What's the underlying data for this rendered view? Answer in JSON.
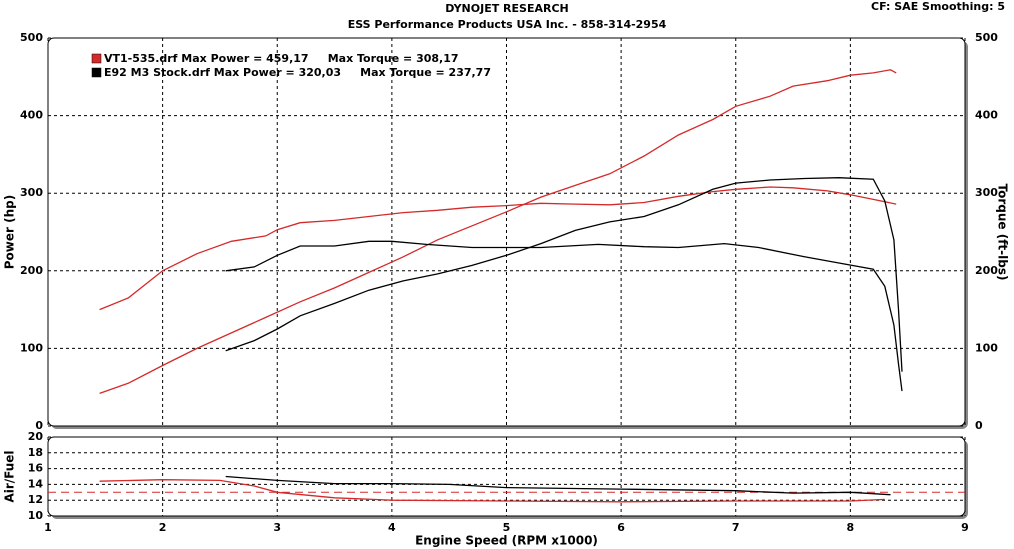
{
  "header": {
    "title": "DYNOJET RESEARCH",
    "subtitle": "ESS Performance Products USA Inc. - 858-314-2954",
    "settings": "CF: SAE  Smoothing: 5"
  },
  "chart_data": [
    {
      "type": "line",
      "ylabel": "Power (hp)",
      "y2label": "Torque (ft-lbs)",
      "xlim": [
        1,
        9
      ],
      "xticks": [
        1,
        2,
        3,
        4,
        5,
        6,
        7,
        8,
        9
      ],
      "ylim": [
        0,
        500
      ],
      "yticks": [
        0,
        100,
        200,
        300,
        400,
        500
      ],
      "y2lim": [
        0,
        500
      ],
      "y2ticks": [
        0,
        100,
        200,
        300,
        400,
        500
      ],
      "grid": true,
      "legend": [
        {
          "label": "VT1-535.drf Max Power = 459,17     Max Torque = 308,17",
          "color": "#d42a2a"
        },
        {
          "label": "E92 M3 Stock.drf Max Power = 320,03     Max Torque = 237,77",
          "color": "#000000"
        }
      ],
      "series": [
        {
          "color": "#d42a2a",
          "x": [
            1.45,
            1.7,
            2.0,
            2.3,
            2.6,
            2.9,
            3.2,
            3.5,
            3.8,
            4.1,
            4.4,
            4.7,
            5.0,
            5.3,
            5.6,
            5.9,
            6.2,
            6.5,
            6.8,
            7.0,
            7.3,
            7.5,
            7.8,
            8.0,
            8.2,
            8.35,
            8.4
          ],
          "values": [
            42,
            55,
            78,
            100,
            120,
            140,
            160,
            178,
            198,
            218,
            240,
            258,
            276,
            295,
            310,
            325,
            348,
            375,
            395,
            412,
            425,
            438,
            445,
            452,
            455,
            459,
            455
          ]
        },
        {
          "color": "#d42a2a",
          "axis": "y2",
          "x": [
            1.45,
            1.7,
            2.0,
            2.3,
            2.6,
            2.9,
            3.0,
            3.2,
            3.5,
            3.8,
            4.1,
            4.4,
            4.7,
            5.0,
            5.3,
            5.6,
            5.9,
            6.2,
            6.5,
            6.8,
            7.0,
            7.3,
            7.5,
            7.8,
            8.0,
            8.2,
            8.4
          ],
          "values": [
            150,
            165,
            200,
            222,
            238,
            245,
            253,
            262,
            265,
            270,
            275,
            278,
            282,
            284,
            287,
            286,
            285,
            288,
            296,
            302,
            305,
            308,
            307,
            303,
            298,
            292,
            286
          ]
        },
        {
          "color": "#000000",
          "x": [
            2.55,
            2.8,
            3.0,
            3.2,
            3.5,
            3.8,
            4.1,
            4.4,
            4.7,
            5.0,
            5.3,
            5.6,
            5.9,
            6.2,
            6.5,
            6.8,
            7.0,
            7.3,
            7.6,
            7.9,
            8.2,
            8.3,
            8.38,
            8.42,
            8.45
          ],
          "values": [
            97,
            110,
            125,
            142,
            158,
            175,
            187,
            196,
            207,
            220,
            235,
            252,
            263,
            270,
            285,
            305,
            313,
            317,
            319,
            320,
            318,
            290,
            240,
            150,
            70
          ]
        },
        {
          "color": "#000000",
          "axis": "y2",
          "x": [
            2.55,
            2.8,
            3.0,
            3.2,
            3.5,
            3.8,
            4.0,
            4.3,
            4.7,
            5.0,
            5.3,
            5.8,
            6.2,
            6.5,
            6.9,
            7.2,
            7.6,
            7.9,
            8.2,
            8.3,
            8.38,
            8.42,
            8.45
          ],
          "values": [
            200,
            205,
            220,
            232,
            232,
            238,
            238,
            234,
            230,
            230,
            230,
            234,
            231,
            230,
            235,
            230,
            218,
            210,
            202,
            180,
            130,
            80,
            45
          ]
        }
      ]
    },
    {
      "type": "line",
      "ylabel": "Air/Fuel",
      "xlabel": "Engine Speed (RPM x1000)",
      "xlim": [
        1,
        9
      ],
      "xticks": [
        1,
        2,
        3,
        4,
        5,
        6,
        7,
        8,
        9
      ],
      "ylim": [
        10,
        20
      ],
      "yticks": [
        10,
        12,
        14,
        16,
        18,
        20
      ],
      "grid": true,
      "reference_line": 13,
      "series": [
        {
          "color": "#d42a2a",
          "x": [
            1.45,
            2.0,
            2.5,
            2.8,
            3.0,
            3.5,
            4.0,
            5.0,
            6.0,
            7.0,
            8.0,
            8.3
          ],
          "values": [
            14.4,
            14.6,
            14.5,
            13.8,
            13.0,
            12.3,
            12.0,
            11.9,
            11.8,
            11.9,
            11.9,
            12.1
          ]
        },
        {
          "color": "#000000",
          "x": [
            2.55,
            3.0,
            3.5,
            4.0,
            4.5,
            5.0,
            6.0,
            7.0,
            7.5,
            8.0,
            8.35
          ],
          "values": [
            15.0,
            14.5,
            14.1,
            14.1,
            14.0,
            13.6,
            13.4,
            13.2,
            12.9,
            13.0,
            12.7
          ]
        }
      ]
    }
  ]
}
